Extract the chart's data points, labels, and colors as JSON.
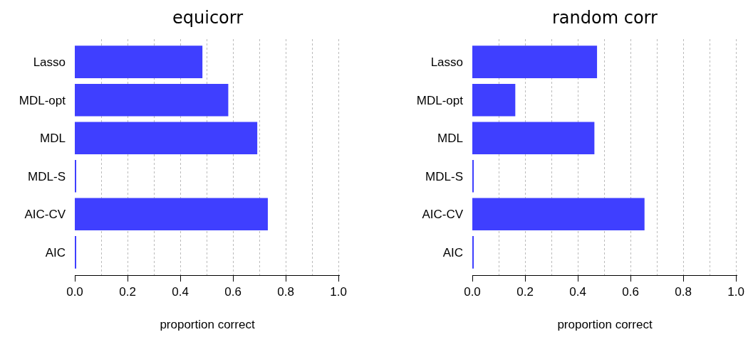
{
  "chart_data": [
    {
      "type": "bar",
      "orientation": "horizontal",
      "title": "equicorr",
      "xlabel": "proportion correct",
      "categories": [
        "Lasso",
        "MDL-opt",
        "MDL",
        "MDL-S",
        "AIC-CV",
        "AIC"
      ],
      "values": [
        0.484,
        0.582,
        0.692,
        0.003,
        0.732,
        0.003
      ],
      "color": "#3f3fff",
      "xlim": [
        0,
        1.0
      ],
      "xticks": [
        {
          "value": 0,
          "label": "0.0"
        },
        {
          "value": 0.1,
          "label": null
        },
        0.2,
        {
          "value": 0.3,
          "label": null
        },
        0.4,
        {
          "value": 0.5,
          "label": null
        },
        0.6,
        {
          "value": 0.7,
          "label": null
        },
        0.8,
        {
          "value": 0.9,
          "label": null
        },
        {
          "value": 1.0,
          "label": "1.0"
        }
      ],
      "grid": "x"
    },
    {
      "type": "bar",
      "orientation": "horizontal",
      "title": "random corr",
      "xlabel": "proportion correct",
      "categories": [
        "Lasso",
        "MDL-opt",
        "MDL",
        "MDL-S",
        "AIC-CV",
        "AIC"
      ],
      "values": [
        0.473,
        0.163,
        0.463,
        0.004,
        0.653,
        0.004
      ],
      "color": "#3f3fff",
      "xlim": [
        0,
        1.0
      ],
      "xticks": [
        {
          "value": 0,
          "label": "0.0"
        },
        {
          "value": 0.1,
          "label": null
        },
        0.2,
        {
          "value": 0.3,
          "label": null
        },
        0.4,
        {
          "value": 0.5,
          "label": null
        },
        0.6,
        {
          "value": 0.7,
          "label": null
        },
        0.8,
        {
          "value": 0.9,
          "label": null
        },
        {
          "value": 1.0,
          "label": "1.0"
        }
      ],
      "grid": "x"
    }
  ]
}
